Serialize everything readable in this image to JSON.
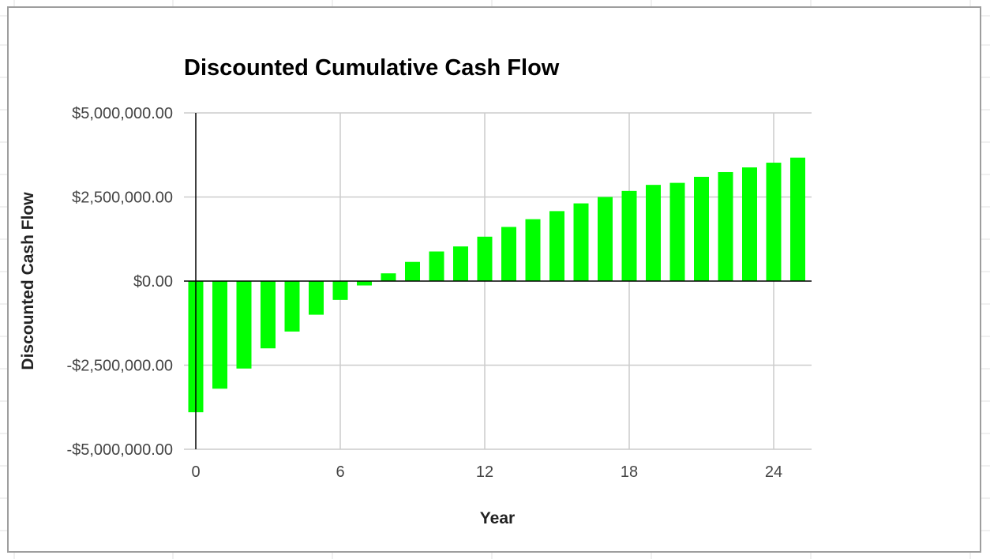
{
  "chart_data": {
    "type": "bar",
    "title": "Discounted Cumulative Cash Flow",
    "xlabel": "Year",
    "ylabel": "Discounted Cash Flow",
    "xlim": [
      0,
      25
    ],
    "ylim": [
      -5000000,
      5000000
    ],
    "x_ticks": [
      0,
      6,
      12,
      18,
      24
    ],
    "y_ticks": [
      {
        "value": 5000000,
        "label": "$5,000,000.00"
      },
      {
        "value": 2500000,
        "label": "$2,500,000.00"
      },
      {
        "value": 0,
        "label": "$0.00"
      },
      {
        "value": -2500000,
        "label": "-$2,500,000.00"
      },
      {
        "value": -5000000,
        "label": "-$5,000,000.00"
      }
    ],
    "x": [
      0,
      1,
      2,
      3,
      4,
      5,
      6,
      7,
      8,
      9,
      10,
      11,
      12,
      13,
      14,
      15,
      16,
      17,
      18,
      19,
      20,
      21,
      22,
      23,
      24,
      25
    ],
    "values": [
      -3900000,
      -3200000,
      -2600000,
      -2000000,
      -1500000,
      -1000000,
      -560000,
      -130000,
      230000,
      570000,
      880000,
      1030000,
      1320000,
      1610000,
      1840000,
      2080000,
      2310000,
      2500000,
      2680000,
      2860000,
      2920000,
      3100000,
      3240000,
      3380000,
      3520000,
      3670000
    ],
    "bar_color": "#00ff00",
    "grid": true,
    "legend": "none"
  }
}
